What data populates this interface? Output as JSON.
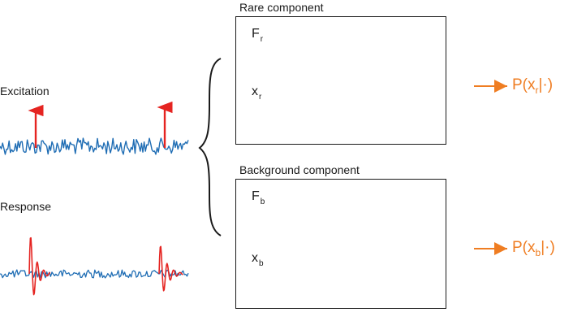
{
  "left": {
    "excitation_label": "Excitation",
    "response_label": "Response"
  },
  "rare_panel": {
    "title": "Rare component",
    "force_symbol": "F",
    "force_sub": "r",
    "response_symbol": "x",
    "response_sub": "r"
  },
  "background_panel": {
    "title": "Background component",
    "force_symbol": "F",
    "force_sub": "b",
    "response_symbol": "x",
    "response_sub": "b"
  },
  "outputs": {
    "rare": {
      "prefix": "P(x",
      "sub": "r",
      "suffix": "|·)"
    },
    "background": {
      "prefix": "P(x",
      "sub": "b",
      "suffix": "|·)"
    }
  },
  "colors": {
    "signal": "#1f6db4",
    "spike": "#e52421",
    "arrow_output": "#ef7d22",
    "text": "#1a1a1a"
  }
}
